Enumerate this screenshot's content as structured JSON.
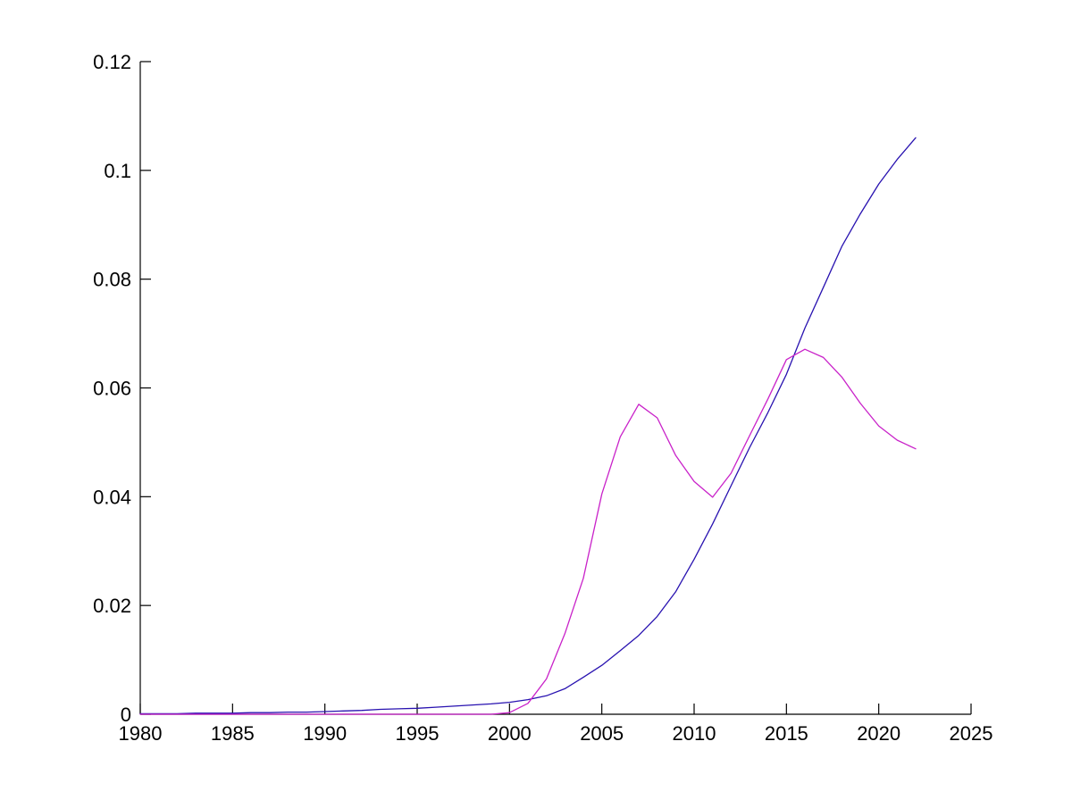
{
  "figure": {
    "background": "#ffffff",
    "axis_color": "#000000"
  },
  "chart_data": {
    "type": "line",
    "title": "",
    "xlabel": "",
    "ylabel": "",
    "grid": false,
    "legend": "none",
    "xlim": [
      1980,
      2025
    ],
    "ylim": [
      0,
      0.12
    ],
    "x_ticks": [
      1980,
      1985,
      1990,
      1995,
      2000,
      2005,
      2010,
      2015,
      2020,
      2025
    ],
    "x_tick_labels": [
      "1980",
      "1985",
      "1990",
      "1995",
      "2000",
      "2005",
      "2010",
      "2015",
      "2020",
      "2025"
    ],
    "y_ticks": [
      0,
      0.02,
      0.04,
      0.06,
      0.08,
      0.1,
      0.12
    ],
    "y_tick_labels": [
      "0",
      "0.02",
      "0.04",
      "0.06",
      "0.08",
      "0.1",
      "0.12"
    ],
    "x": [
      1980,
      1981,
      1982,
      1983,
      1984,
      1985,
      1986,
      1987,
      1988,
      1989,
      1990,
      1991,
      1992,
      1993,
      1994,
      1995,
      1996,
      1997,
      1998,
      1999,
      2000,
      2001,
      2002,
      2003,
      2004,
      2005,
      2006,
      2007,
      2008,
      2009,
      2010,
      2011,
      2012,
      2013,
      2014,
      2015,
      2016,
      2017,
      2018,
      2019,
      2020,
      2021,
      2022
    ],
    "series": [
      {
        "name": "blue-curve",
        "color": "#2812B0",
        "values": [
          0.0001,
          0.0001,
          0.0001,
          0.0002,
          0.0002,
          0.0002,
          0.0003,
          0.0003,
          0.0004,
          0.0004,
          0.0005,
          0.0006,
          0.0007,
          0.0009,
          0.001,
          0.0011,
          0.0013,
          0.0015,
          0.0017,
          0.0019,
          0.0022,
          0.0027,
          0.0034,
          0.0047,
          0.0068,
          0.009,
          0.0117,
          0.0145,
          0.018,
          0.0225,
          0.0285,
          0.035,
          0.042,
          0.049,
          0.0555,
          0.0625,
          0.071,
          0.0785,
          0.086,
          0.092,
          0.0975,
          0.102,
          0.106
        ]
      },
      {
        "name": "magenta-curve",
        "color": "#C922C9",
        "values": [
          0.0,
          0.0,
          0.0,
          0.0,
          0.0,
          0.0,
          0.0,
          0.0,
          0.0,
          0.0,
          0.0,
          0.0,
          0.0,
          0.0,
          0.0,
          0.0,
          0.0,
          0.0,
          0.0,
          0.0,
          0.0003,
          0.002,
          0.0065,
          0.0148,
          0.025,
          0.0405,
          0.051,
          0.057,
          0.0545,
          0.0476,
          0.0428,
          0.0399,
          0.0443,
          0.0512,
          0.058,
          0.0652,
          0.0671,
          0.0656,
          0.062,
          0.0572,
          0.053,
          0.0504,
          0.0488
        ]
      }
    ]
  }
}
